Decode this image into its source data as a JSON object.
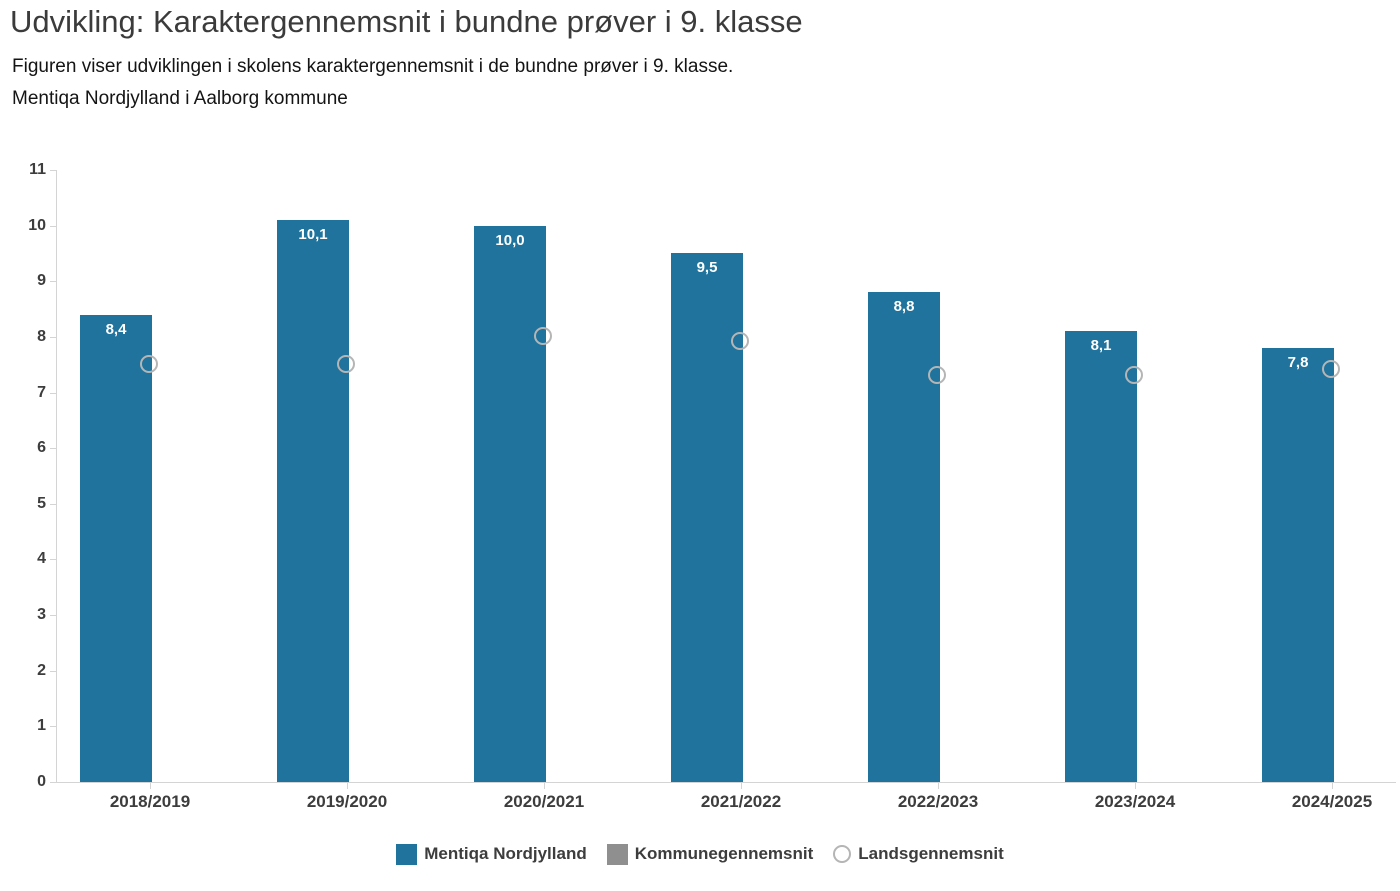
{
  "title": "Udvikling: Karaktergennemsnit i bundne prøver i 9. klasse",
  "subtitle_line1": "Figuren viser udviklingen i skolens karaktergennemsnit i de bundne prøver i 9. klasse.",
  "subtitle_line2": "Mentiqa Nordjylland i Aalborg kommune",
  "colors": {
    "school_bar": "#1f739c",
    "municipality_swatch": "#8f8f8f",
    "national_marker_stroke": "#b5b5b5",
    "axis_line": "#d4d4d4",
    "axis_label": "#3d3d3d",
    "bar_value_label": "#ffffff"
  },
  "legend": {
    "items": [
      {
        "label": "Mentiqa Nordjylland",
        "swatch": "square",
        "color": "#1f739c"
      },
      {
        "label": "Kommunegennemsnit",
        "swatch": "square",
        "color": "#8f8f8f"
      },
      {
        "label": "Landsgennemsnit",
        "swatch": "circle",
        "color": "#b5b5b5"
      }
    ]
  },
  "chart_data": {
    "type": "bar",
    "title": "Udvikling: Karaktergennemsnit i bundne prøver i 9. klasse",
    "categories": [
      "2018/2019",
      "2019/2020",
      "2020/2021",
      "2021/2022",
      "2022/2023",
      "2023/2024",
      "2024/2025"
    ],
    "series": [
      {
        "name": "Mentiqa Nordjylland",
        "type": "bar",
        "color": "#1f739c",
        "values": [
          8.4,
          10.1,
          10.0,
          9.5,
          8.8,
          8.1,
          7.8
        ],
        "value_labels": [
          "8,4",
          "10,1",
          "10,0",
          "9,5",
          "8,8",
          "8,1",
          "7,8"
        ]
      },
      {
        "name": "Kommunegennemsnit",
        "type": "bar",
        "color": "#8f8f8f",
        "values": [
          null,
          null,
          null,
          null,
          null,
          null,
          null
        ],
        "value_labels": [
          "",
          "",
          "",
          "",
          "",
          "",
          ""
        ]
      },
      {
        "name": "Landsgennemsnit",
        "type": "point",
        "color": "#b5b5b5",
        "values": [
          7.5,
          7.5,
          8.0,
          7.9,
          7.3,
          7.3,
          7.4
        ]
      }
    ],
    "xlabel": "",
    "ylabel": "",
    "ylim": [
      0,
      11
    ],
    "yticks": [
      0,
      1,
      2,
      3,
      4,
      5,
      6,
      7,
      8,
      9,
      10,
      11
    ],
    "grid": false,
    "legend_position": "bottom"
  }
}
